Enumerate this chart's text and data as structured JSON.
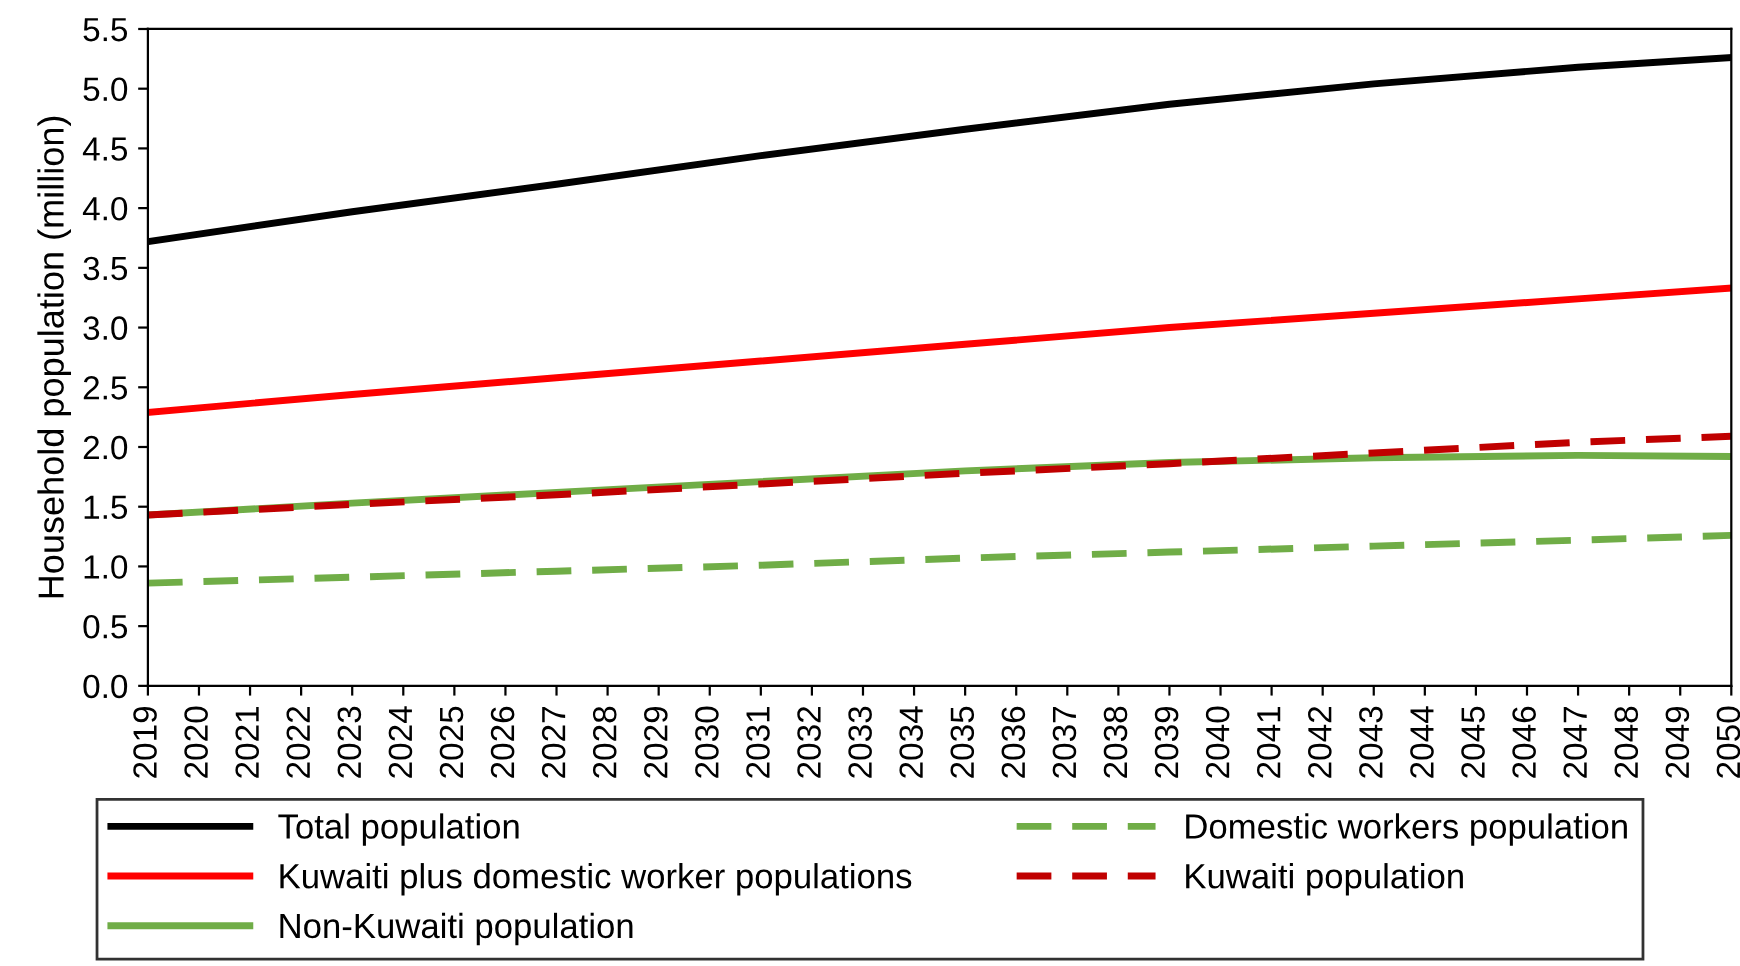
{
  "chart_data": {
    "type": "line",
    "ylabel": "Household population (million)",
    "x": [
      2019,
      2023,
      2027,
      2031,
      2035,
      2039,
      2043,
      2047,
      2050
    ],
    "xlim": [
      2019,
      2050
    ],
    "xticks": [
      2019,
      2020,
      2021,
      2022,
      2023,
      2024,
      2025,
      2026,
      2027,
      2028,
      2029,
      2030,
      2031,
      2032,
      2033,
      2034,
      2035,
      2036,
      2037,
      2038,
      2039,
      2040,
      2041,
      2042,
      2043,
      2044,
      2045,
      2046,
      2047,
      2048,
      2049,
      2050
    ],
    "ylim": [
      0,
      5.5
    ],
    "yticks": [
      {
        "value": 0,
        "label": "0.0"
      },
      {
        "value": 0.5,
        "label": "0.5"
      },
      {
        "value": 1,
        "label": "1.0"
      },
      {
        "value": 1.5,
        "label": "1.5"
      },
      {
        "value": 2,
        "label": "2.0"
      },
      {
        "value": 2.5,
        "label": "2.5"
      },
      {
        "value": 3,
        "label": "3.0"
      },
      {
        "value": 3.5,
        "label": "3.5"
      },
      {
        "value": 4,
        "label": "4.0"
      },
      {
        "value": 4.5,
        "label": "4.5"
      },
      {
        "value": 5,
        "label": "5.0"
      },
      {
        "value": 5.5,
        "label": "5.5"
      }
    ],
    "grid": false,
    "legend": "bottom",
    "marker": "none",
    "series": [
      {
        "name": "Total population",
        "color": "#000000",
        "line_style": "solid",
        "values": [
          3.72,
          3.97,
          4.2,
          4.44,
          4.66,
          4.87,
          5.04,
          5.18,
          5.26
        ]
      },
      {
        "name": "Kuwaiti plus domestic worker populations",
        "color": "#ff0000",
        "line_style": "solid",
        "values": [
          2.29,
          2.44,
          2.58,
          2.72,
          2.86,
          3.0,
          3.12,
          3.24,
          3.33
        ]
      },
      {
        "name": "Non-Kuwaiti population",
        "color": "#70ad47",
        "line_style": "solid",
        "values": [
          1.43,
          1.53,
          1.62,
          1.71,
          1.8,
          1.87,
          1.91,
          1.93,
          1.92
        ]
      },
      {
        "name": "Domestic workers population",
        "color": "#70ad47",
        "line_style": "dashed",
        "values": [
          0.86,
          0.91,
          0.96,
          1.01,
          1.07,
          1.12,
          1.17,
          1.22,
          1.26
        ]
      },
      {
        "name": "Kuwaiti population",
        "color": "#c00000",
        "line_style": "dashed",
        "values": [
          1.43,
          1.52,
          1.6,
          1.69,
          1.78,
          1.86,
          1.95,
          2.04,
          2.09
        ]
      }
    ]
  }
}
